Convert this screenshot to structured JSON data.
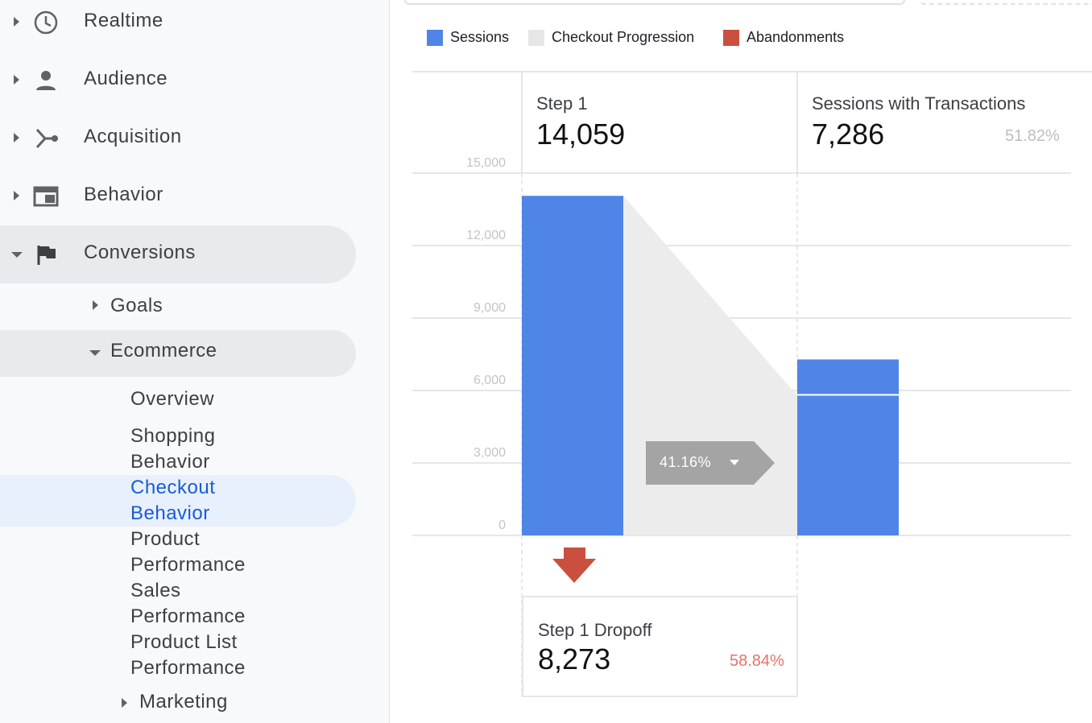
{
  "sidebar": {
    "items": [
      {
        "label": "Realtime",
        "icon": "clock-icon"
      },
      {
        "label": "Audience",
        "icon": "person-icon"
      },
      {
        "label": "Acquisition",
        "icon": "acquisition-icon"
      },
      {
        "label": "Behavior",
        "icon": "behavior-icon"
      },
      {
        "label": "Conversions",
        "icon": "flag-icon"
      }
    ],
    "conversions": {
      "goals": "Goals",
      "ecommerce": "Ecommerce",
      "marketing": "Marketing",
      "ecommerce_items": [
        {
          "line1": "Overview",
          "line2": ""
        },
        {
          "line1": "Shopping",
          "line2": "Behavior"
        },
        {
          "line1": "Checkout",
          "line2": "Behavior",
          "active": true
        },
        {
          "line1": "Product",
          "line2": "Performance"
        },
        {
          "line1": "Sales",
          "line2": "Performance"
        },
        {
          "line1": "Product List",
          "line2": "Performance"
        }
      ]
    }
  },
  "colors": {
    "sessions": "#5085e8",
    "progression": "#e6e6e6",
    "abandonments": "#cb4f3f",
    "active": "#1a5bd6"
  },
  "chart_data": {
    "type": "bar",
    "legend": [
      "Sessions",
      "Checkout Progression",
      "Abandonments"
    ],
    "ylim": [
      0,
      15000
    ],
    "yticks": [
      "0",
      "3,000",
      "6,000",
      "9,000",
      "12,000",
      "15,000"
    ],
    "steps": [
      {
        "label": "Step 1",
        "value": "14,059",
        "sessions": 14059
      },
      {
        "label": "Sessions with Transactions",
        "value": "7,286",
        "pct": "51.82%",
        "sessions": 7286,
        "from_previous": 5786
      }
    ],
    "conversion_rate": "41.16%",
    "dropoff": {
      "label": "Step 1 Dropoff",
      "value": "8,273",
      "pct": "58.84%"
    }
  }
}
